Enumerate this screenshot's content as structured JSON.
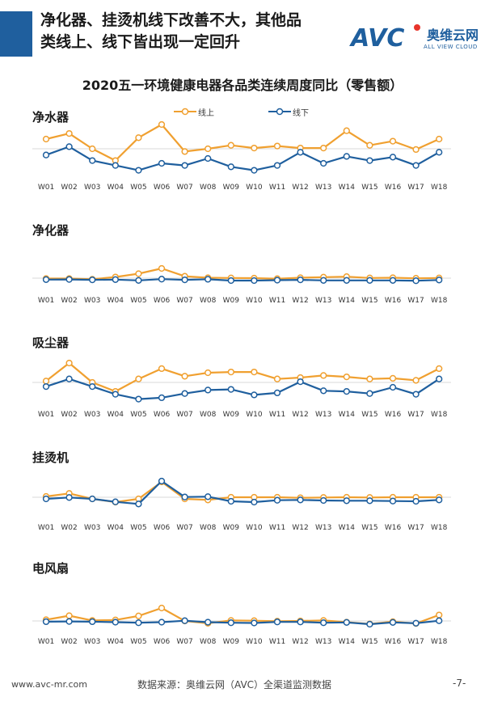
{
  "header": {
    "headline_line1": "净化器、挂烫机线下改善不大，其他品",
    "headline_line2": "类线上、线下皆出现一定回升",
    "logo_mark": "AVC",
    "logo_cn": "奥维云网",
    "logo_en": "ALL VIEW CLOUD"
  },
  "title": "2020五一环境健康电器各品类连续周度同比（零售额）",
  "legend": {
    "online": "线上",
    "offline": "线下"
  },
  "colors": {
    "online": "#f0a030",
    "offline": "#1f5f9e",
    "accent": "#1f5f9e"
  },
  "footer": {
    "website": "www.avc-mr.com",
    "source": "数据来源：奥维云网（AVC）全渠道监测数据",
    "page": "-7-"
  },
  "chart_data": [
    {
      "type": "line",
      "category": "净水器",
      "categories": [
        "W01",
        "W02",
        "W03",
        "W04",
        "W05",
        "W06",
        "W07",
        "W08",
        "W09",
        "W10",
        "W11",
        "W12",
        "W13",
        "W14",
        "W15",
        "W16",
        "W17",
        "W18"
      ],
      "series": [
        {
          "name": "线上",
          "values": [
            14,
            22,
            0,
            -17,
            16,
            35,
            -4,
            0,
            5,
            1,
            4,
            1,
            1,
            26,
            5,
            11,
            -1,
            14
          ]
        },
        {
          "name": "线下",
          "values": [
            -9,
            3,
            -17,
            -24,
            -31,
            -21,
            -24,
            -14,
            -26,
            -31,
            -24,
            -5,
            -21,
            -11,
            -17,
            -12,
            -24,
            -5
          ]
        }
      ]
    },
    {
      "type": "line",
      "category": "净化器",
      "categories": [
        "W01",
        "W02",
        "W03",
        "W04",
        "W05",
        "W06",
        "W07",
        "W08",
        "W09",
        "W10",
        "W11",
        "W12",
        "W13",
        "W14",
        "W15",
        "W16",
        "W17",
        "W18"
      ],
      "series": [
        {
          "name": "线上",
          "values": [
            -2,
            -2,
            -6,
            6,
            24,
            52,
            10,
            2,
            1,
            0,
            -3,
            2,
            5,
            8,
            1,
            2,
            -1,
            1
          ]
        },
        {
          "name": "线下",
          "values": [
            -8,
            -7,
            -9,
            -8,
            -12,
            -5,
            -9,
            -6,
            -13,
            -13,
            -11,
            -9,
            -12,
            -12,
            -12,
            -12,
            -14,
            -10
          ]
        }
      ]
    },
    {
      "type": "line",
      "category": "吸尘器",
      "categories": [
        "W01",
        "W02",
        "W03",
        "W04",
        "W05",
        "W06",
        "W07",
        "W08",
        "W09",
        "W10",
        "W11",
        "W12",
        "W13",
        "W14",
        "W15",
        "W16",
        "W17",
        "W18"
      ],
      "series": [
        {
          "name": "线上",
          "values": [
            2,
            28,
            0,
            -13,
            5,
            20,
            9,
            14,
            15,
            15,
            5,
            7,
            10,
            8,
            5,
            6,
            3,
            20
          ]
        },
        {
          "name": "线下",
          "values": [
            -6,
            5,
            -6,
            -17,
            -24,
            -22,
            -16,
            -11,
            -10,
            -18,
            -15,
            1,
            -12,
            -13,
            -16,
            -7,
            -17,
            5
          ]
        }
      ]
    },
    {
      "type": "line",
      "category": "挂烫机",
      "categories": [
        "W01",
        "W02",
        "W03",
        "W04",
        "W05",
        "W06",
        "W07",
        "W08",
        "W09",
        "W10",
        "W11",
        "W12",
        "W13",
        "W14",
        "W15",
        "W16",
        "W17",
        "W18"
      ],
      "series": [
        {
          "name": "线上",
          "values": [
            3,
            14,
            -6,
            -18,
            -6,
            57,
            -6,
            -10,
            0,
            0,
            0,
            -2,
            -1,
            0,
            -1,
            0,
            0,
            0
          ]
        },
        {
          "name": "线下",
          "values": [
            -6,
            -1,
            -6,
            -17,
            -25,
            60,
            1,
            2,
            -15,
            -18,
            -11,
            -10,
            -12,
            -13,
            -13,
            -14,
            -15,
            -10
          ]
        }
      ]
    },
    {
      "type": "line",
      "category": "电风扇",
      "categories": [
        "W01",
        "W02",
        "W03",
        "W04",
        "W05",
        "W06",
        "W07",
        "W08",
        "W09",
        "W10",
        "W11",
        "W12",
        "W13",
        "W14",
        "W15",
        "W16",
        "W17",
        "W18"
      ],
      "series": [
        {
          "name": "线上",
          "values": [
            5,
            21,
            2,
            4,
            20,
            52,
            0,
            -9,
            2,
            1,
            -1,
            0,
            2,
            -5,
            -12,
            -3,
            -10,
            24
          ]
        },
        {
          "name": "线下",
          "values": [
            -3,
            -2,
            -3,
            -5,
            -7,
            -5,
            1,
            -5,
            -7,
            -8,
            -4,
            -4,
            -7,
            -6,
            -13,
            -6,
            -9,
            1
          ]
        }
      ]
    }
  ]
}
